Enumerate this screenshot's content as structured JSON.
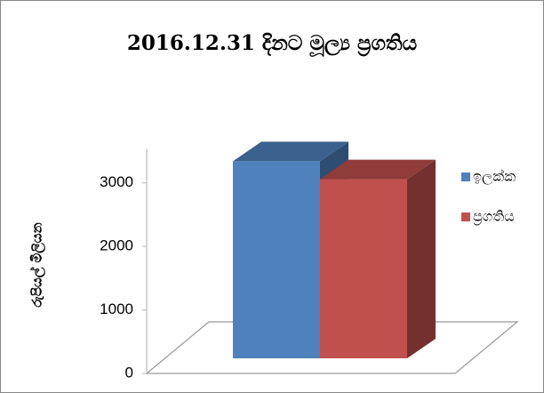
{
  "chart_data": {
    "type": "bar3d",
    "title": "2016.12.31 දිනට මූල්‍ය ප්‍රගතිය",
    "ylabel": "රුපියල් මිලියන",
    "categories": [
      null
    ],
    "series": [
      {
        "name": "ඉලක්ක",
        "color": "#4f81bd",
        "values": [
          3300
        ]
      },
      {
        "name": "ප්‍රගතිය",
        "color": "#c0504d",
        "values": [
          3000
        ]
      }
    ],
    "ylim": [
      0,
      3500
    ],
    "yticks": [
      0,
      1000,
      2000,
      3000
    ],
    "legend": "right"
  }
}
